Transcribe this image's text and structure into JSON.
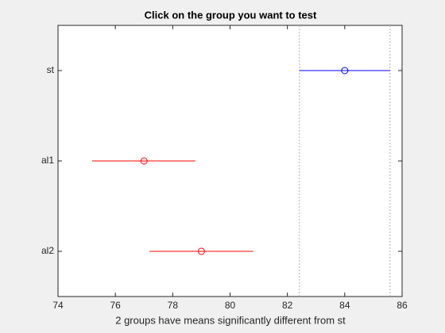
{
  "chart_data": {
    "type": "interval",
    "title": "Click on the group you want to test",
    "xlabel": "2 groups have means significantly different from st",
    "categories": [
      "st",
      "al1",
      "al2"
    ],
    "values": [
      84,
      77,
      79
    ],
    "lower": [
      82.42,
      75.19,
      77.19
    ],
    "upper": [
      85.58,
      78.79,
      80.81
    ],
    "colors": [
      "#0000ff",
      "#ff0000",
      "#ff0000"
    ],
    "xlim": [
      74,
      86
    ],
    "xticks": [
      74,
      76,
      78,
      80,
      82,
      84,
      86
    ],
    "reference_lines": [
      82.42,
      85.58
    ]
  }
}
